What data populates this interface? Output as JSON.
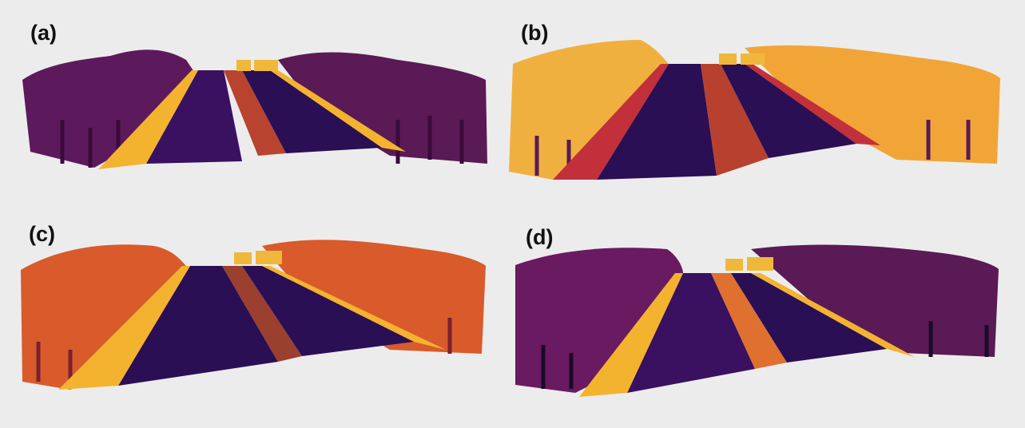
{
  "figure": {
    "panels": [
      {
        "id": "a",
        "label": "(a)",
        "palette": "dark-magenta"
      },
      {
        "id": "b",
        "label": "(b)",
        "palette": "yellow-orange"
      },
      {
        "id": "c",
        "label": "(c)",
        "palette": "orange-red"
      },
      {
        "id": "d",
        "label": "(d)",
        "palette": "purple"
      }
    ],
    "colors": {
      "background": "#ececec",
      "road": "#2a0f55",
      "road_alt": "#3a1060",
      "rail": "#f3b32f",
      "sign": "#f0b83a",
      "trunk": "#3a0a3a"
    }
  }
}
